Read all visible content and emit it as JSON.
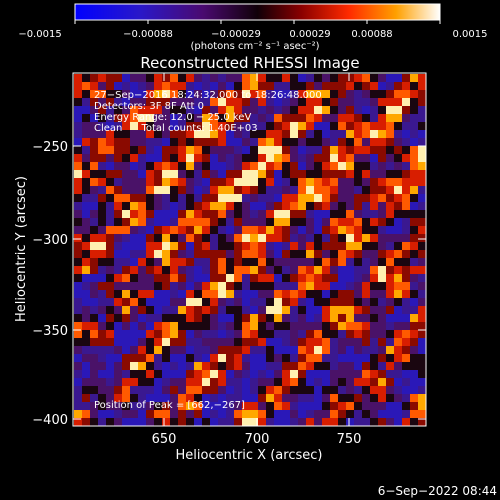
{
  "colorbar": {
    "tick_labels": [
      "−0.0015",
      "−0.00088",
      "−0.00029",
      "0.00029",
      "0.00088",
      "0.0015"
    ],
    "unit_label": "(photons cm⁻² s⁻¹ asec⁻²)"
  },
  "plot": {
    "title": "Reconstructed RHESSI Image",
    "xlabel": "Heliocentric X (arcsec)",
    "ylabel": "Heliocentric Y (arcsec)",
    "xticks": [
      "650",
      "700",
      "750"
    ],
    "yticks": [
      "−250",
      "−300",
      "−350",
      "−400"
    ],
    "annotations": {
      "line1": "27−Sep−2016 18:24:32.000 to 18:26:48.000",
      "line2": "Detectors: 3F 8F  Att 0",
      "line3": "Energy Range: 12.0 − 25.0 keV",
      "line4": "Clean      Total counts: 1.40E+03",
      "peak": "Position of Peak = [662,−267]"
    }
  },
  "footer": {
    "timestamp": "6−Sep−2022 08:44"
  }
}
